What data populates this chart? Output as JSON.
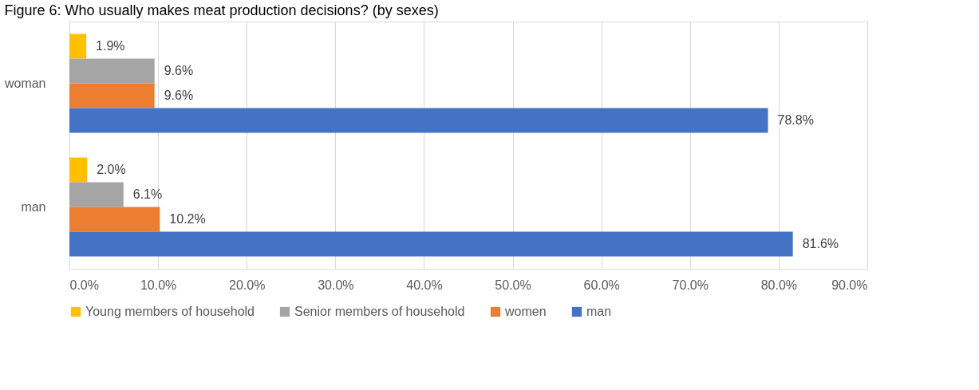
{
  "chart_data": {
    "type": "bar",
    "orientation": "horizontal",
    "title": "Figure 6: Who usually makes meat production decisions? (by sexes)",
    "categories": [
      "woman",
      "man"
    ],
    "series": [
      {
        "name": "Young members of household",
        "color": "#ffc000",
        "values": [
          1.9,
          2.0
        ],
        "value_labels": [
          "1.9%",
          "2.0%"
        ]
      },
      {
        "name": "Senior members of household",
        "color": "#a5a5a5",
        "values": [
          9.6,
          6.1
        ],
        "value_labels": [
          "9.6%",
          "6.1%"
        ]
      },
      {
        "name": "women",
        "color": "#ed7d31",
        "values": [
          9.6,
          10.2
        ],
        "value_labels": [
          "9.6%",
          "10.2%"
        ]
      },
      {
        "name": "man",
        "color": "#4472c4",
        "values": [
          78.8,
          81.6
        ],
        "value_labels": [
          "78.8%",
          "81.6%"
        ]
      }
    ],
    "xlim": [
      0,
      90
    ],
    "xticks": [
      {
        "value": 0,
        "label": "0.0%"
      },
      {
        "value": 10,
        "label": "10.0%"
      },
      {
        "value": 20,
        "label": "20.0%"
      },
      {
        "value": 30,
        "label": "30.0%"
      },
      {
        "value": 40,
        "label": "40.0%"
      },
      {
        "value": 50,
        "label": "50.0%"
      },
      {
        "value": 60,
        "label": "60.0%"
      },
      {
        "value": 70,
        "label": "70.0%"
      },
      {
        "value": 80,
        "label": "80.0%"
      },
      {
        "value": 90,
        "label": "90.0%"
      }
    ],
    "grid": "x",
    "legend": "bottom"
  }
}
